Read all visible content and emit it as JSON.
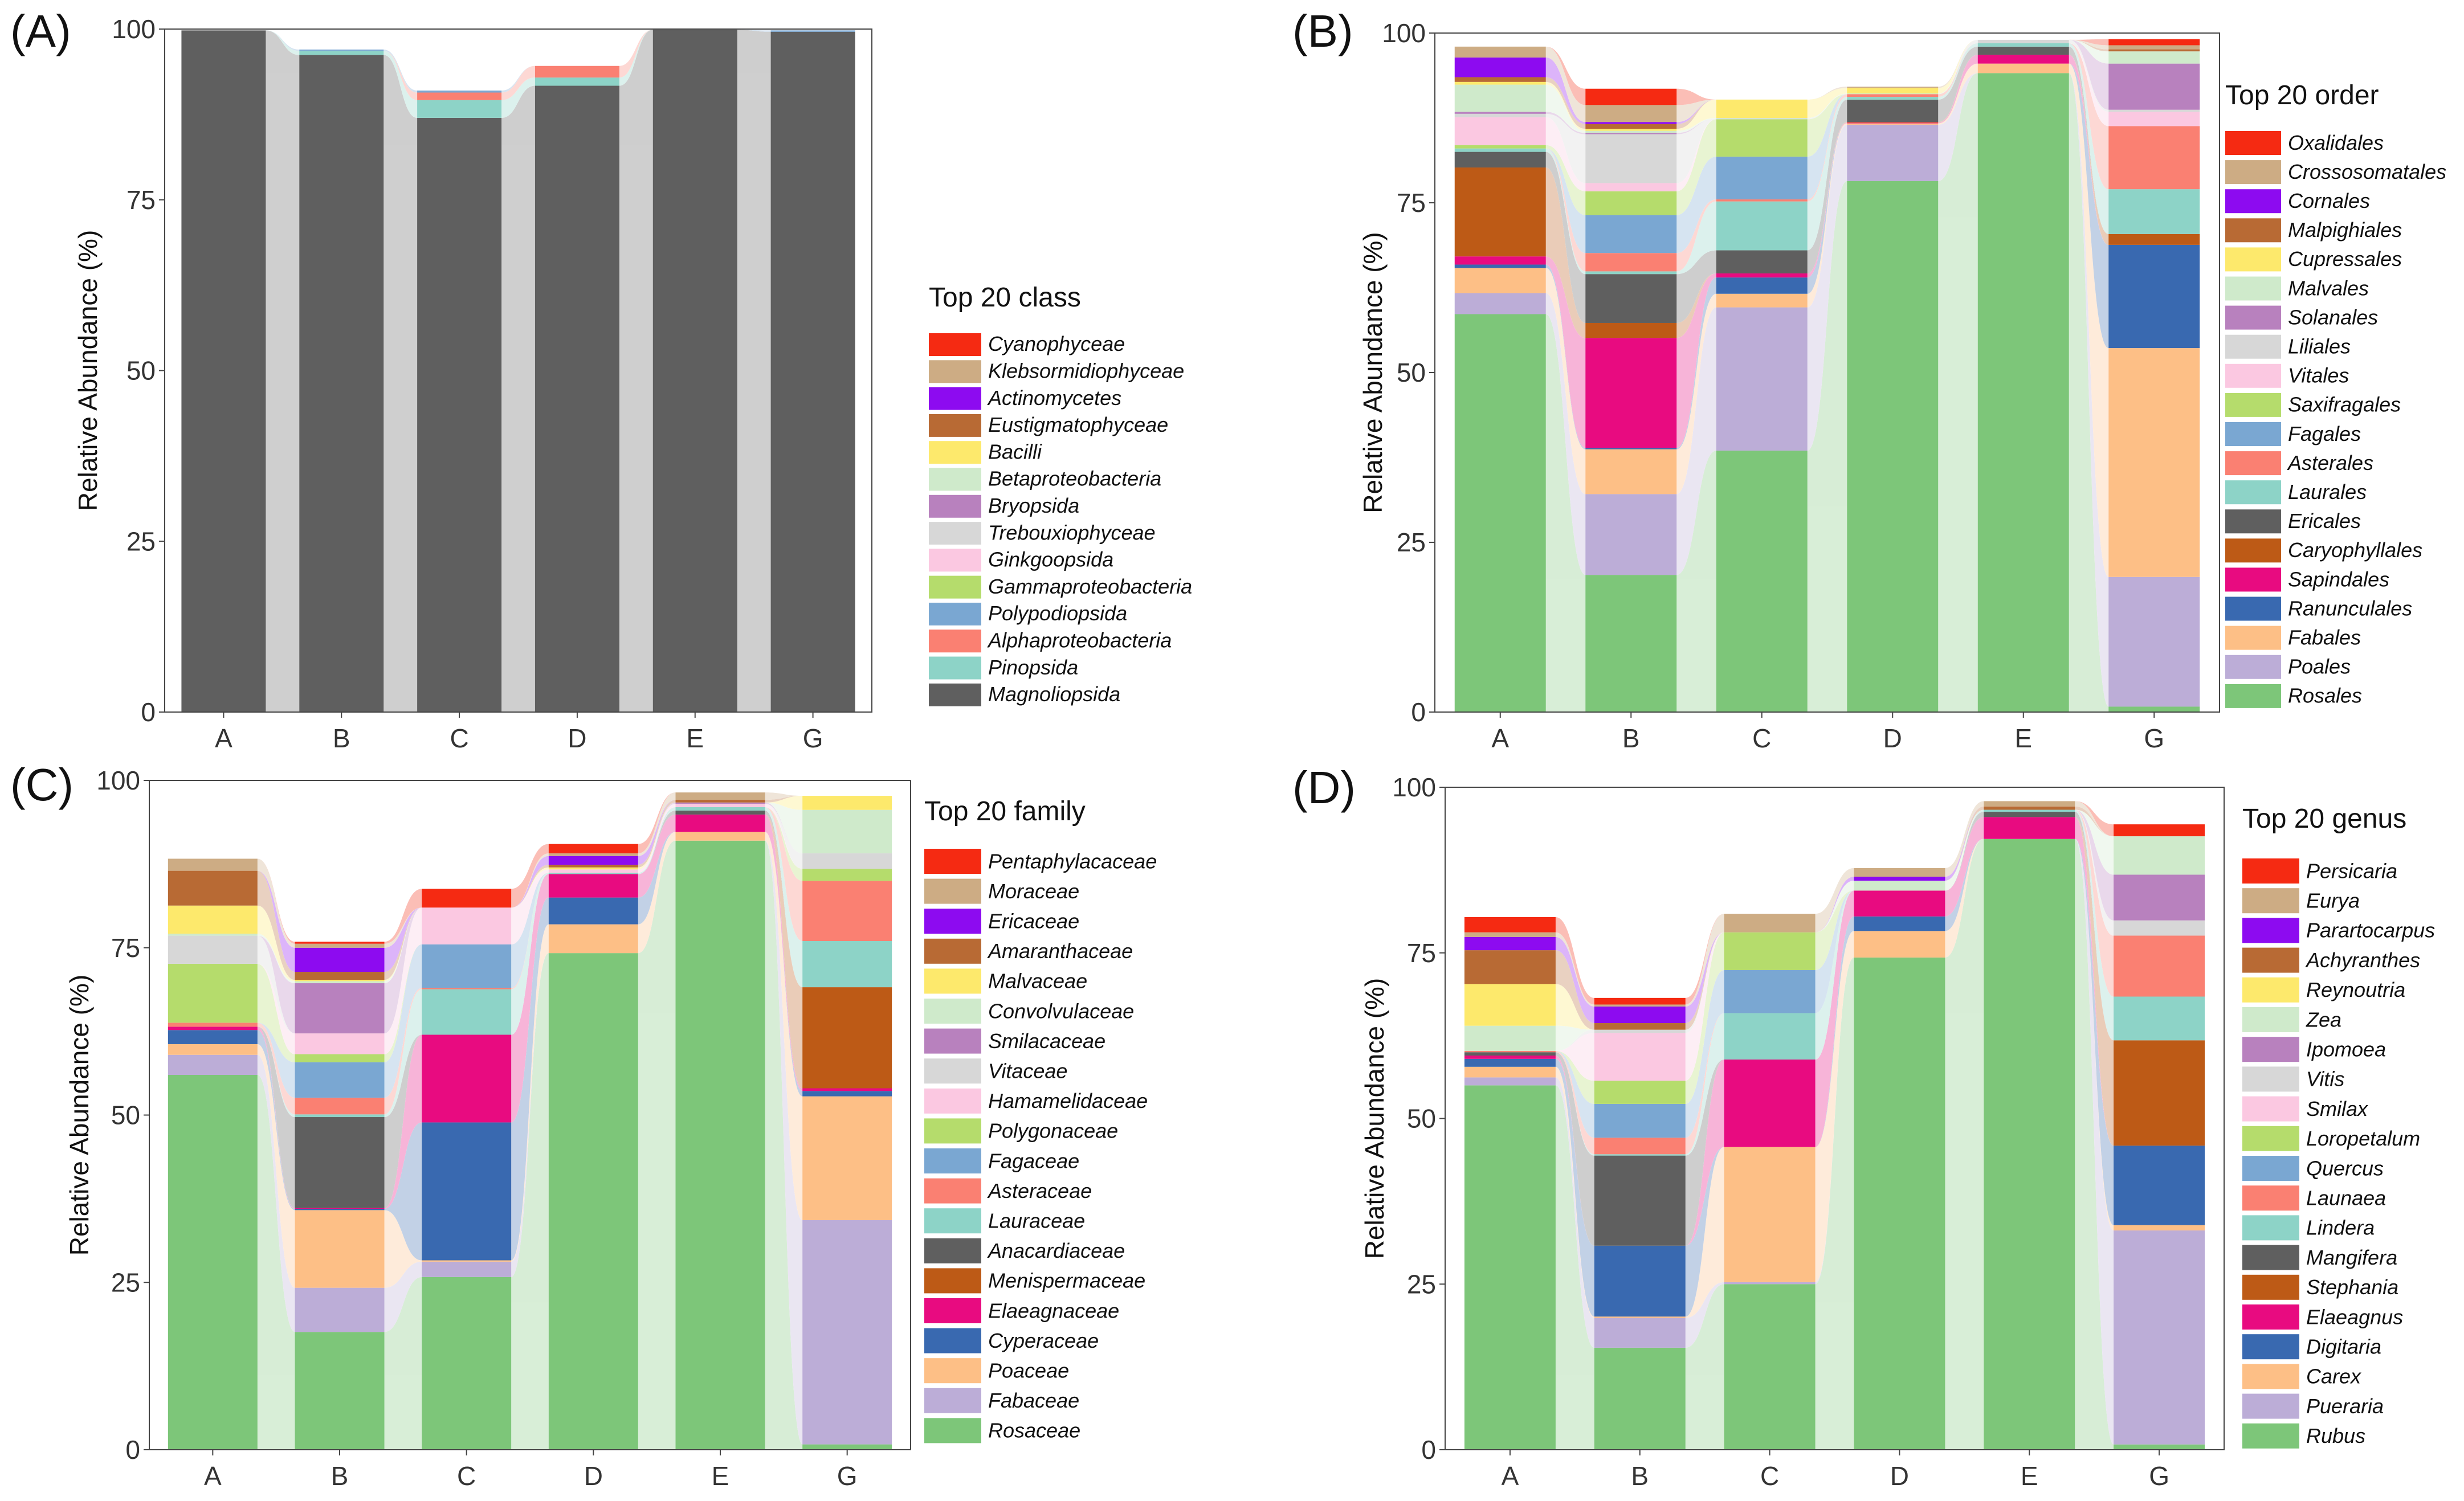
{
  "figure": {
    "panel_count": 4
  },
  "chart_data": [
    {
      "panel_label": "(A)",
      "type": "bar",
      "stacked": true,
      "flows_between_bars": true,
      "ylabel": "Relative Abundance (%)",
      "xlabel": "",
      "ylim": [
        0,
        100
      ],
      "yticks": [
        0,
        25,
        50,
        75,
        100
      ],
      "categories": [
        "A",
        "B",
        "C",
        "D",
        "E",
        "G"
      ],
      "legend_title": "Top 20 class",
      "series": [
        {
          "name": "Cyanophyceae",
          "color": "#f52a12",
          "values": [
            0,
            0,
            0,
            0,
            0,
            0
          ]
        },
        {
          "name": "Klebsormidiophyceae",
          "color": "#cdac84",
          "values": [
            0,
            0,
            0,
            0,
            0,
            0
          ]
        },
        {
          "name": "Actinomycetes",
          "color": "#8d0bf0",
          "values": [
            0,
            0,
            0,
            0,
            0,
            0
          ]
        },
        {
          "name": "Eustigmatophyceae",
          "color": "#b86a34",
          "values": [
            0,
            0,
            0,
            0,
            0,
            0
          ]
        },
        {
          "name": "Bacilli",
          "color": "#fde96c",
          "values": [
            0,
            0,
            0,
            0,
            0,
            0
          ]
        },
        {
          "name": "Betaproteobacteria",
          "color": "#cfeacb",
          "values": [
            0,
            0,
            0,
            0,
            0,
            0
          ]
        },
        {
          "name": "Bryopsida",
          "color": "#b881be",
          "values": [
            0,
            0,
            0,
            0,
            0,
            0
          ]
        },
        {
          "name": "Trebouxiophyceae",
          "color": "#d7d7d7",
          "values": [
            0,
            0,
            0,
            0,
            0,
            0
          ]
        },
        {
          "name": "Ginkgoopsida",
          "color": "#fbc8e1",
          "values": [
            0,
            0,
            0,
            0,
            0,
            0
          ]
        },
        {
          "name": "Gammaproteobacteria",
          "color": "#b5dc6c",
          "values": [
            0,
            0,
            0,
            0,
            0,
            0
          ]
        },
        {
          "name": "Polypodiopsida",
          "color": "#7aa7d2",
          "values": [
            0,
            0.2,
            0.3,
            0,
            0,
            0.2
          ]
        },
        {
          "name": "Alphaproteobacteria",
          "color": "#fa8072",
          "values": [
            0,
            0,
            1.1,
            1.7,
            0,
            0
          ]
        },
        {
          "name": "Pinopsida",
          "color": "#8dd3c7",
          "values": [
            0,
            0.6,
            2.6,
            1.2,
            0,
            0
          ]
        },
        {
          "name": "Magnoliopsida",
          "color": "#5f5f5f",
          "values": [
            99.8,
            96.2,
            87,
            91.7,
            99.9,
            99.6
          ]
        }
      ]
    },
    {
      "panel_label": "(B)",
      "type": "bar",
      "stacked": true,
      "flows_between_bars": true,
      "ylabel": "Relative Abundance (%)",
      "xlabel": "",
      "ylim": [
        0,
        100
      ],
      "yticks": [
        0,
        25,
        50,
        75,
        100
      ],
      "categories": [
        "A",
        "B",
        "C",
        "D",
        "E",
        "G"
      ],
      "legend_title": "Top 20 order",
      "series": [
        {
          "name": "Oxalidales",
          "color": "#f52a12",
          "values": [
            0,
            2.4,
            0,
            0,
            0,
            0.9
          ]
        },
        {
          "name": "Crossosomatales",
          "color": "#cdac84",
          "values": [
            1.6,
            2.5,
            0,
            0.2,
            0,
            0.6
          ]
        },
        {
          "name": "Cornales",
          "color": "#8d0bf0",
          "values": [
            2.9,
            0.3,
            0,
            0,
            0,
            0
          ]
        },
        {
          "name": "Malpighiales",
          "color": "#b86a34",
          "values": [
            0.7,
            0.7,
            0,
            0,
            0,
            0.3
          ]
        },
        {
          "name": "Cupressales",
          "color": "#fde96c",
          "values": [
            0.4,
            0.3,
            2.7,
            0.8,
            0,
            0
          ]
        },
        {
          "name": "Malvales",
          "color": "#cfeacb",
          "values": [
            4,
            0.3,
            0.1,
            0.1,
            0,
            1.8
          ]
        },
        {
          "name": "Solanales",
          "color": "#b881be",
          "values": [
            0.3,
            0.2,
            0,
            0,
            0,
            6.8
          ]
        },
        {
          "name": "Liliales",
          "color": "#d7d7d7",
          "values": [
            0.5,
            7.2,
            0.1,
            0,
            0.5,
            0.3
          ]
        },
        {
          "name": "Vitales",
          "color": "#fbc8e1",
          "values": [
            4.1,
            1.2,
            0,
            0,
            0,
            2.1
          ]
        },
        {
          "name": "Saxifragales",
          "color": "#b5dc6c",
          "values": [
            0.5,
            3.5,
            5.5,
            0,
            0,
            0
          ]
        },
        {
          "name": "Fagales",
          "color": "#7aa7d2",
          "values": [
            0,
            5.6,
            6.3,
            0,
            0,
            0
          ]
        },
        {
          "name": "Asterales",
          "color": "#fa8072",
          "values": [
            0,
            2.7,
            0.3,
            0.4,
            0,
            9.3
          ]
        },
        {
          "name": "Laurales",
          "color": "#8dd3c7",
          "values": [
            0.5,
            0.4,
            7.2,
            0.4,
            0.5,
            6.6
          ]
        },
        {
          "name": "Ericales",
          "color": "#5f5f5f",
          "values": [
            2.3,
            7.2,
            3.4,
            3.3,
            1.2,
            0
          ]
        },
        {
          "name": "Caryophyllales",
          "color": "#bd5a16",
          "values": [
            13.1,
            2.2,
            0,
            0.1,
            0,
            1.6
          ]
        },
        {
          "name": "Sapindales",
          "color": "#e80b80",
          "values": [
            1.2,
            16.2,
            0.6,
            0.1,
            1.3,
            0
          ]
        },
        {
          "name": "Ranunculales",
          "color": "#3969b0",
          "values": [
            0.5,
            0.2,
            2.4,
            0,
            0,
            15.2
          ]
        },
        {
          "name": "Fabales",
          "color": "#fdbf86",
          "values": [
            3.7,
            6.6,
            2,
            0.2,
            1.4,
            33.7
          ]
        },
        {
          "name": "Poales",
          "color": "#bcadd7",
          "values": [
            3.1,
            11.9,
            21.1,
            8.3,
            0,
            19.1
          ]
        },
        {
          "name": "Rosales",
          "color": "#7dc679",
          "values": [
            58.6,
            20.2,
            38.5,
            78.2,
            94.1,
            0.8
          ]
        }
      ]
    },
    {
      "panel_label": "(C)",
      "type": "bar",
      "stacked": true,
      "flows_between_bars": true,
      "ylabel": "Relative Abundance (%)",
      "xlabel": "",
      "ylim": [
        0,
        100
      ],
      "yticks": [
        0,
        25,
        50,
        75,
        100
      ],
      "categories": [
        "A",
        "B",
        "C",
        "D",
        "E",
        "G"
      ],
      "legend_title": "Top 20 family",
      "series": [
        {
          "name": "Pentaphylacaceae",
          "color": "#f52a12",
          "values": [
            0,
            0.3,
            2.8,
            1.4,
            0,
            0
          ]
        },
        {
          "name": "Moraceae",
          "color": "#cdac84",
          "values": [
            1.8,
            0.6,
            0,
            0.4,
            1.1,
            0
          ]
        },
        {
          "name": "Ericaceae",
          "color": "#8d0bf0",
          "values": [
            0,
            3.6,
            0,
            1.3,
            0,
            0
          ]
        },
        {
          "name": "Amaranthaceae",
          "color": "#b86a34",
          "values": [
            5.2,
            1.2,
            0,
            0.4,
            0.4,
            0
          ]
        },
        {
          "name": "Malvaceae",
          "color": "#fde96c",
          "values": [
            4.2,
            0.2,
            0,
            0.3,
            0,
            2.1
          ]
        },
        {
          "name": "Convolvulaceae",
          "color": "#cfeacb",
          "values": [
            0.3,
            0.3,
            0,
            0,
            0,
            6.5
          ]
        },
        {
          "name": "Smilacaceae",
          "color": "#b881be",
          "values": [
            0,
            7.5,
            0,
            0,
            0.2,
            0
          ]
        },
        {
          "name": "Vitaceae",
          "color": "#d7d7d7",
          "values": [
            4.2,
            0,
            0,
            0,
            0,
            2.3
          ]
        },
        {
          "name": "Hamamelidaceae",
          "color": "#fbc8e1",
          "values": [
            0,
            3.1,
            5.5,
            0.5,
            0.5,
            0
          ]
        },
        {
          "name": "Polygonaceae",
          "color": "#b5dc6c",
          "values": [
            8.8,
            1.2,
            0,
            0,
            0,
            1.8
          ]
        },
        {
          "name": "Fagaceae",
          "color": "#7aa7d2",
          "values": [
            0,
            5.3,
            6.5,
            0,
            0,
            0
          ]
        },
        {
          "name": "Asteraceae",
          "color": "#fa8072",
          "values": [
            0.6,
            2.5,
            0.2,
            0,
            0,
            9
          ]
        },
        {
          "name": "Lauraceae",
          "color": "#8dd3c7",
          "values": [
            0,
            0.4,
            6.8,
            0.2,
            0.5,
            6.9
          ]
        },
        {
          "name": "Anacardiaceae",
          "color": "#5f5f5f",
          "values": [
            0,
            13.6,
            0,
            0,
            0.6,
            0
          ]
        },
        {
          "name": "Menispermaceae",
          "color": "#bd5a16",
          "values": [
            0,
            0,
            0,
            0,
            0,
            15.1
          ]
        },
        {
          "name": "Elaeagnaceae",
          "color": "#e80b80",
          "values": [
            0.5,
            0.1,
            13.1,
            3.5,
            2.6,
            0.4
          ]
        },
        {
          "name": "Cyperaceae",
          "color": "#3969b0",
          "values": [
            2.1,
            0.2,
            20.6,
            4,
            0,
            0.8
          ]
        },
        {
          "name": "Poaceae",
          "color": "#fdbf86",
          "values": [
            1.6,
            11.6,
            0.2,
            4.3,
            1.3,
            18.5
          ]
        },
        {
          "name": "Fabaceae",
          "color": "#bcadd7",
          "values": [
            3,
            6.6,
            2.3,
            0,
            0,
            33.5
          ]
        },
        {
          "name": "Rosaceae",
          "color": "#7dc679",
          "values": [
            56,
            17.6,
            25.8,
            74.2,
            91,
            0.8
          ]
        }
      ]
    },
    {
      "panel_label": "(D)",
      "type": "bar",
      "stacked": true,
      "flows_between_bars": true,
      "ylabel": "Relative Abundance (%)",
      "xlabel": "",
      "ylim": [
        0,
        100
      ],
      "yticks": [
        0,
        25,
        50,
        75,
        100
      ],
      "categories": [
        "A",
        "B",
        "C",
        "D",
        "E",
        "G"
      ],
      "legend_title": "Top 20 genus",
      "series": [
        {
          "name": "Persicaria",
          "color": "#f52a12",
          "values": [
            2.3,
            1,
            0,
            0,
            0,
            1.8
          ]
        },
        {
          "name": "Eurya",
          "color": "#cdac84",
          "values": [
            0.7,
            0.3,
            2.8,
            1.3,
            0.8,
            0
          ]
        },
        {
          "name": "Parartocarpus",
          "color": "#8d0bf0",
          "values": [
            2,
            2.5,
            0,
            0.6,
            0,
            0
          ]
        },
        {
          "name": "Achyranthes",
          "color": "#b86a34",
          "values": [
            5.1,
            1,
            0,
            0,
            0.5,
            0
          ]
        },
        {
          "name": "Reynoutria",
          "color": "#fde96c",
          "values": [
            6.3,
            0,
            0,
            0,
            0,
            0
          ]
        },
        {
          "name": "Zea",
          "color": "#cfeacb",
          "values": [
            3.8,
            0,
            0,
            1.5,
            0,
            5.8
          ]
        },
        {
          "name": "Ipomoea",
          "color": "#b881be",
          "values": [
            0,
            0,
            0,
            0,
            0,
            6.9
          ]
        },
        {
          "name": "Vitis",
          "color": "#d7d7d7",
          "values": [
            0,
            0.5,
            0,
            0,
            0,
            2.3
          ]
        },
        {
          "name": "Smilax",
          "color": "#fbc8e1",
          "values": [
            0,
            7.2,
            0,
            0,
            0,
            0
          ]
        },
        {
          "name": "Loropetalum",
          "color": "#b5dc6c",
          "values": [
            0,
            3.5,
            5.7,
            0,
            0,
            0
          ]
        },
        {
          "name": "Quercus",
          "color": "#7aa7d2",
          "values": [
            0,
            5.1,
            6.5,
            0,
            0,
            0
          ]
        },
        {
          "name": "Launaea",
          "color": "#fa8072",
          "values": [
            0.2,
            2.5,
            0,
            0,
            0,
            9.2
          ]
        },
        {
          "name": "Lindera",
          "color": "#8dd3c7",
          "values": [
            0,
            0.2,
            7,
            0,
            0.3,
            6.6
          ]
        },
        {
          "name": "Mangifera",
          "color": "#5f5f5f",
          "values": [
            0.5,
            13.6,
            0,
            0,
            0.8,
            0
          ]
        },
        {
          "name": "Stephania",
          "color": "#bd5a16",
          "values": [
            0,
            0,
            0,
            0,
            0,
            15.9
          ]
        },
        {
          "name": "Elaeagnus",
          "color": "#e80b80",
          "values": [
            0.5,
            0,
            13.2,
            3.9,
            3.3,
            0
          ]
        },
        {
          "name": "Digitaria",
          "color": "#3969b0",
          "values": [
            1.2,
            10.7,
            0,
            2.2,
            0,
            12
          ]
        },
        {
          "name": "Carex",
          "color": "#fdbf86",
          "values": [
            1.6,
            0.2,
            20.4,
            4,
            0,
            0.8
          ]
        },
        {
          "name": "Pueraria",
          "color": "#bcadd7",
          "values": [
            1.2,
            4.5,
            0.3,
            0,
            0,
            32.3
          ]
        },
        {
          "name": "Rubus",
          "color": "#7dc679",
          "values": [
            55,
            15.4,
            25,
            74.3,
            92.2,
            0.8
          ]
        }
      ]
    }
  ]
}
